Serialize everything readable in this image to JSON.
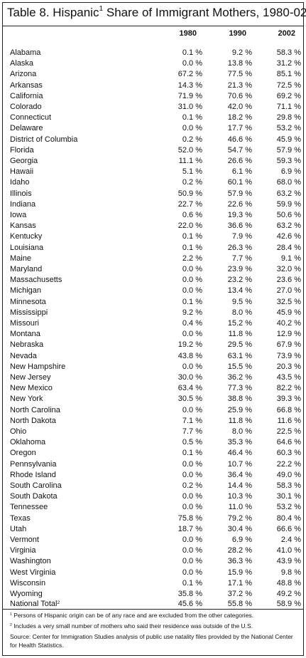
{
  "title": {
    "before": "Table 8.  Hispanic",
    "sup": "1",
    "after": " Share of Immigrant Mothers, 1980-02"
  },
  "columns": [
    "1980",
    "1990",
    "2002"
  ],
  "rows": [
    [
      "Alabama",
      "0.1 %",
      "9.2 %",
      "58.3 %"
    ],
    [
      "Alaska",
      "0.0 %",
      "13.8 %",
      "31.2 %"
    ],
    [
      "Arizona",
      "67.2 %",
      "77.5 %",
      "85.1 %"
    ],
    [
      "Arkansas",
      "14.3 %",
      "21.3 %",
      "72.5 %"
    ],
    [
      "California",
      "71.9 %",
      "70.6 %",
      "69.2 %"
    ],
    [
      "Colorado",
      "31.0 %",
      "42.0 %",
      "71.1 %"
    ],
    [
      "Connecticut",
      "0.1 %",
      "18.2 %",
      "29.8 %"
    ],
    [
      "Delaware",
      "0.0 %",
      "17.7 %",
      "53.2 %"
    ],
    [
      "District of Columbia",
      "0.2 %",
      "46.6 %",
      "45.9 %"
    ],
    [
      "Florida",
      "52.0 %",
      "54.7 %",
      "57.9 %"
    ],
    [
      "Georgia",
      "11.1 %",
      "26.6 %",
      "59.3 %"
    ],
    [
      "Hawaii",
      "5.1 %",
      "6.1 %",
      "6.9 %"
    ],
    [
      "Idaho",
      "0.2 %",
      "60.1 %",
      "68.0 %"
    ],
    [
      "Illinois",
      "50.9 %",
      "57.9 %",
      "63.2 %"
    ],
    [
      "Indiana",
      "22.7 %",
      "22.6 %",
      "59.9 %"
    ],
    [
      "Iowa",
      "0.6 %",
      "19.3 %",
      "50.6 %"
    ],
    [
      "Kansas",
      "22.0 %",
      "36.6 %",
      "63.2 %"
    ],
    [
      "Kentucky",
      "0.1 %",
      "7.9 %",
      "42.6 %"
    ],
    [
      "Louisiana",
      "0.1 %",
      "26.3 %",
      "28.4 %"
    ],
    [
      "Maine",
      "2.2 %",
      "7.7 %",
      "9.1 %"
    ],
    [
      "Maryland",
      "0.0 %",
      "23.9 %",
      "32.0 %"
    ],
    [
      "Massachusetts",
      "0.0 %",
      "23.2 %",
      "23.6 %"
    ],
    [
      "Michigan",
      "0.0 %",
      "13.4 %",
      "27.0 %"
    ],
    [
      "Minnesota",
      "0.1 %",
      "9.5 %",
      "32.5 %"
    ],
    [
      "Mississippi",
      "9.2 %",
      "8.0 %",
      "45.9 %"
    ],
    [
      "Missouri",
      "0.4 %",
      "15.2 %",
      "40.2 %"
    ],
    [
      "Montana",
      "0.0 %",
      "11.8 %",
      "12.9 %"
    ],
    [
      "Nebraska",
      "19.2 %",
      "29.5 %",
      "67.9 %"
    ],
    [
      "Nevada",
      "43.8 %",
      "63.1 %",
      "73.9 %"
    ],
    [
      "New Hampshire",
      "0.0 %",
      "15.5 %",
      "20.3 %"
    ],
    [
      "New Jersey",
      "30.0 %",
      "36.2 %",
      "43.5 %"
    ],
    [
      "New Mexico",
      "63.4 %",
      "77.3 %",
      "82.2 %"
    ],
    [
      "New York",
      "30.5 %",
      "38.8 %",
      "39.3 %"
    ],
    [
      "North Carolina",
      "0.0 %",
      "25.9 %",
      "66.8 %"
    ],
    [
      "North Dakota",
      "7.1 %",
      "11.8 %",
      "11.6 %"
    ],
    [
      "Ohio",
      "7.7 %",
      "8.0 %",
      "22.5 %"
    ],
    [
      "Oklahoma",
      "0.5 %",
      "35.3 %",
      "64.6 %"
    ],
    [
      "Oregon",
      "0.1 %",
      "46.4 %",
      "60.3 %"
    ],
    [
      "Pennsylvania",
      "0.0 %",
      "10.7 %",
      "22.2 %"
    ],
    [
      "Rhode Island",
      "0.0 %",
      "36.4 %",
      "49.0 %"
    ],
    [
      "South Carolina",
      "0.2 %",
      "14.4 %",
      "58.3 %"
    ],
    [
      "South Dakota",
      "0.0 %",
      "10.3 %",
      "30.1 %"
    ],
    [
      "Tennessee",
      "0.0 %",
      "11.0 %",
      "53.2 %"
    ],
    [
      "Texas",
      "75.8 %",
      "79.2 %",
      "80.4 %"
    ],
    [
      "Utah",
      "18.7 %",
      "30.4 %",
      "66.6 %"
    ],
    [
      "Vermont",
      "0.0 %",
      "6.9 %",
      "2.4 %"
    ],
    [
      "Virginia",
      "0.0 %",
      "28.2 %",
      "41.0 %"
    ],
    [
      "Washington",
      "0.0 %",
      "36.3 %",
      "43.9 %"
    ],
    [
      "West Virginia",
      "0.0 %",
      "15.9 %",
      "9.8 %"
    ],
    [
      "Wisconsin",
      "0.1 %",
      "17.1 %",
      "48.8 %"
    ],
    [
      "Wyoming",
      "35.8 %",
      "37.2 %",
      "49.2 %"
    ]
  ],
  "total": {
    "label": "National Total",
    "sup": "2",
    "values": [
      "45.6 %",
      "55.8 %",
      "58.9 %"
    ]
  },
  "footnotes": [
    {
      "mark": "1",
      "text": " Persons of Hispanic origin can be of any race and are excluded from the other categories."
    },
    {
      "mark": "2",
      "text": " Includes a very small number of mothers who said their residence was outside of the U.S."
    }
  ],
  "source": "Source:  Center for Immigration Studies analysis of public use natality files provided by the National Center for Health Statistics."
}
